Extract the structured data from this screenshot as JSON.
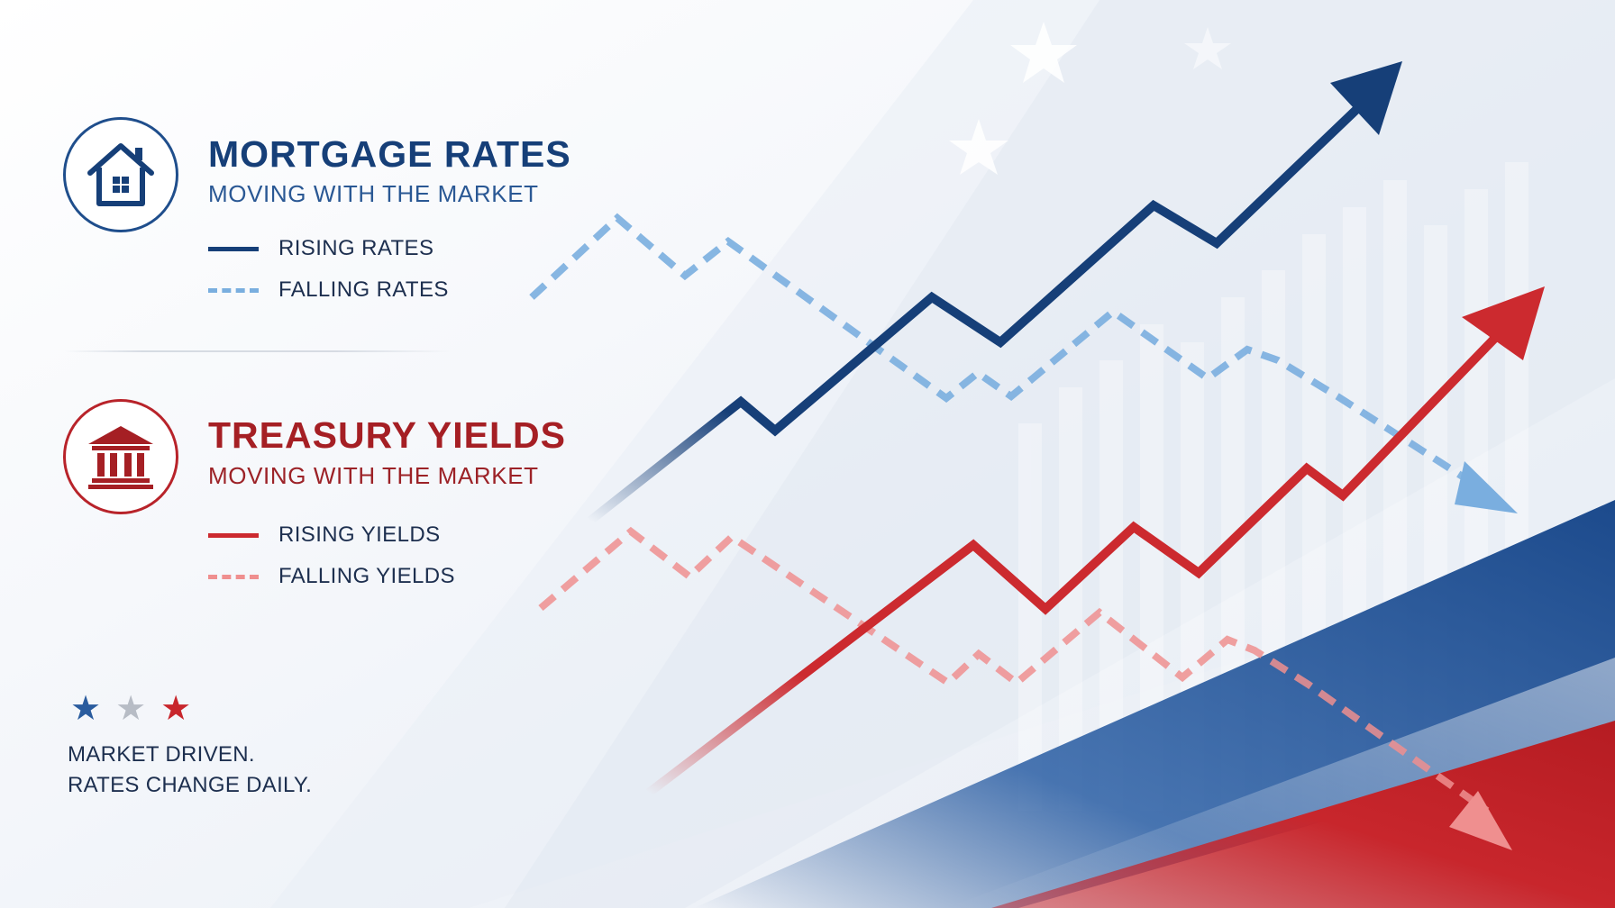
{
  "mortgage": {
    "title": "MORTGAGE RATES",
    "subtitle": "MOVING WITH THE MARKET",
    "icon": "house-icon",
    "color": "#163f78",
    "legend": [
      {
        "label": "RISING RATES",
        "style": "solid",
        "color": "#163f78"
      },
      {
        "label": "FALLING RATES",
        "style": "dashed",
        "color": "#7aaedf"
      }
    ]
  },
  "treasury": {
    "title": "TREASURY YIELDS",
    "subtitle": "MOVING WITH THE MARKET",
    "icon": "bank-building-icon",
    "color": "#b8232a",
    "legend": [
      {
        "label": "RISING YIELDS",
        "style": "solid",
        "color": "#cc2a2f"
      },
      {
        "label": "FALLING YIELDS",
        "style": "dashed",
        "color": "#ef8f8f"
      }
    ]
  },
  "stars": [
    {
      "icon": "star-icon",
      "color": "#2a5c9e"
    },
    {
      "icon": "star-icon",
      "color": "#b7bcc5"
    },
    {
      "icon": "star-icon",
      "color": "#c8262c"
    }
  ],
  "footer": {
    "line1": "MARKET DRIVEN.",
    "line2": "RATES CHANGE DAILY."
  }
}
